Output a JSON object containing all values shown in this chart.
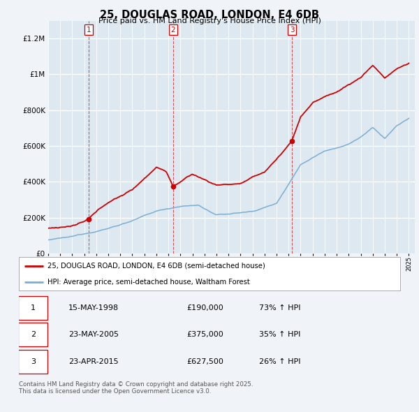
{
  "title": "25, DOUGLAS ROAD, LONDON, E4 6DB",
  "subtitle": "Price paid vs. HM Land Registry's House Price Index (HPI)",
  "legend_line1": "25, DOUGLAS ROAD, LONDON, E4 6DB (semi-detached house)",
  "legend_line2": "HPI: Average price, semi-detached house, Waltham Forest",
  "sale1_label": "1",
  "sale1_date": "15-MAY-1998",
  "sale1_price": "£190,000",
  "sale1_hpi": "73% ↑ HPI",
  "sale2_label": "2",
  "sale2_date": "23-MAY-2005",
  "sale2_price": "£375,000",
  "sale2_hpi": "35% ↑ HPI",
  "sale3_label": "3",
  "sale3_date": "23-APR-2015",
  "sale3_price": "£627,500",
  "sale3_hpi": "26% ↑ HPI",
  "footer": "Contains HM Land Registry data © Crown copyright and database right 2025.\nThis data is licensed under the Open Government Licence v3.0.",
  "red_color": "#cc0000",
  "blue_color": "#7aaed4",
  "bg_color": "#f0f4f8",
  "plot_bg": "#dde8f0",
  "grid_color": "#ffffff",
  "vline_color": "#cc0000",
  "ylim": [
    0,
    1300000
  ],
  "yticks": [
    0,
    200000,
    400000,
    600000,
    800000,
    1000000,
    1200000
  ]
}
